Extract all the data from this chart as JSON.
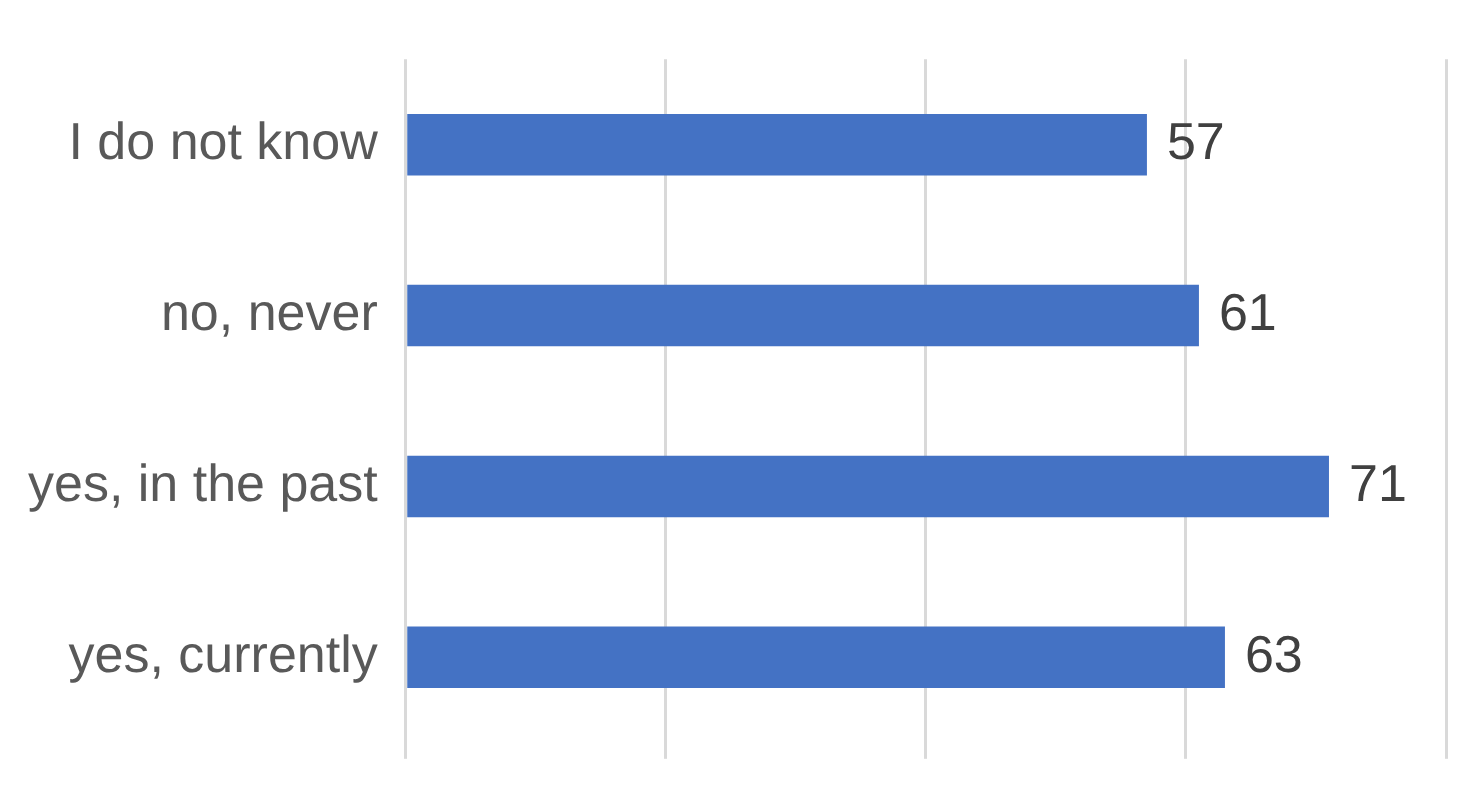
{
  "chart_data": {
    "type": "bar",
    "orientation": "horizontal",
    "categories": [
      "I do not know",
      "no, never",
      "yes, in the past",
      "yes, currently"
    ],
    "values": [
      57,
      61,
      71,
      63
    ],
    "color": "#4472c4",
    "data_labels": true,
    "xlim": [
      0,
      80
    ],
    "xticks": [
      {
        "value": 0,
        "label": null
      },
      {
        "value": 20,
        "label": null
      },
      {
        "value": 40,
        "label": null
      },
      {
        "value": 60,
        "label": null
      },
      {
        "value": 80,
        "label": null
      }
    ],
    "tick_labels": "y",
    "grid": "x",
    "legend": false
  }
}
